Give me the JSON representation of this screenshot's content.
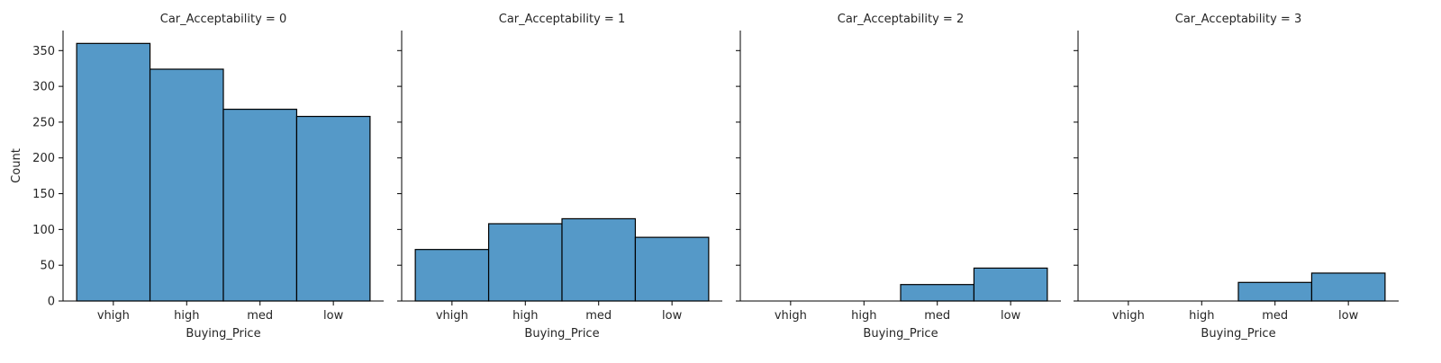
{
  "chart_data": {
    "type": "bar",
    "layout": "facet-grid",
    "shared_y_axis": true,
    "categories": [
      "vhigh",
      "high",
      "med",
      "low"
    ],
    "xlabel": "Buying_Price",
    "ylabel": "Count",
    "ylim": [
      0,
      378
    ],
    "yticks": [
      0,
      50,
      100,
      150,
      200,
      250,
      300,
      350
    ],
    "bar_color": "#5599c8",
    "bar_edge_color": "#000000",
    "grid": false,
    "facets": [
      {
        "title": "Car_Acceptability = 0",
        "values": [
          360,
          324,
          268,
          258
        ]
      },
      {
        "title": "Car_Acceptability = 1",
        "values": [
          72,
          108,
          115,
          89
        ]
      },
      {
        "title": "Car_Acceptability = 2",
        "values": [
          0,
          0,
          23,
          46
        ]
      },
      {
        "title": "Car_Acceptability = 3",
        "values": [
          0,
          0,
          26,
          39
        ]
      }
    ]
  }
}
